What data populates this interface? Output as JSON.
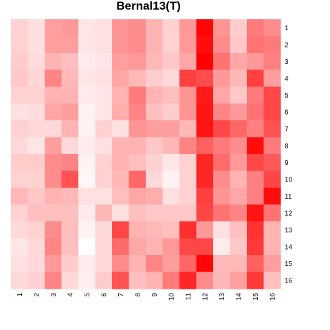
{
  "chart_data": {
    "type": "heatmap",
    "title": "Bernal13(T)",
    "xlabel": "",
    "ylabel": "",
    "x_categories": [
      "1",
      "2",
      "3",
      "4",
      "5",
      "6",
      "7",
      "8",
      "9",
      "10",
      "11",
      "12",
      "13",
      "14",
      "15",
      "16"
    ],
    "y_categories": [
      "1",
      "2",
      "3",
      "4",
      "5",
      "6",
      "7",
      "8",
      "9",
      "10",
      "11",
      "12",
      "13",
      "14",
      "15",
      "16"
    ],
    "color_low": "#ffffff",
    "color_high": "#ff0000",
    "value_range": [
      0,
      1
    ],
    "legend": "none",
    "grid": false,
    "values": [
      [
        0.18,
        0.12,
        0.38,
        0.4,
        0.1,
        0.12,
        0.42,
        0.45,
        0.3,
        0.18,
        0.4,
        0.98,
        0.42,
        0.2,
        0.52,
        0.45
      ],
      [
        0.18,
        0.12,
        0.38,
        0.38,
        0.1,
        0.12,
        0.42,
        0.45,
        0.3,
        0.18,
        0.4,
        0.95,
        0.45,
        0.22,
        0.55,
        0.52
      ],
      [
        0.2,
        0.14,
        0.3,
        0.25,
        0.08,
        0.1,
        0.38,
        0.4,
        0.28,
        0.22,
        0.35,
        1.0,
        0.55,
        0.35,
        0.4,
        0.5
      ],
      [
        0.22,
        0.16,
        0.48,
        0.28,
        0.1,
        0.12,
        0.35,
        0.28,
        0.2,
        0.15,
        0.75,
        0.7,
        0.4,
        0.28,
        0.75,
        0.38
      ],
      [
        0.18,
        0.18,
        0.3,
        0.3,
        0.08,
        0.1,
        0.3,
        0.52,
        0.3,
        0.25,
        0.42,
        0.9,
        0.35,
        0.22,
        0.52,
        0.72
      ],
      [
        0.12,
        0.14,
        0.35,
        0.38,
        0.05,
        0.1,
        0.32,
        0.48,
        0.25,
        0.2,
        0.42,
        0.92,
        0.48,
        0.4,
        0.55,
        0.72
      ],
      [
        0.18,
        0.15,
        0.15,
        0.3,
        0.05,
        0.18,
        0.12,
        0.42,
        0.38,
        0.38,
        0.28,
        0.92,
        0.72,
        0.6,
        0.5,
        0.68
      ],
      [
        0.15,
        0.1,
        0.38,
        0.15,
        0.08,
        0.12,
        0.3,
        0.3,
        0.22,
        0.28,
        0.48,
        0.62,
        0.52,
        0.45,
        0.95,
        0.52
      ],
      [
        0.2,
        0.2,
        0.45,
        0.48,
        0.05,
        0.18,
        0.3,
        0.25,
        0.18,
        0.1,
        0.18,
        0.85,
        0.58,
        0.4,
        0.72,
        0.65
      ],
      [
        0.18,
        0.18,
        0.45,
        0.68,
        0.03,
        0.18,
        0.28,
        0.6,
        0.15,
        0.05,
        0.18,
        0.85,
        0.45,
        0.3,
        0.5,
        0.72
      ],
      [
        0.28,
        0.22,
        0.3,
        0.28,
        0.12,
        0.12,
        0.25,
        0.35,
        0.32,
        0.12,
        0.18,
        0.75,
        0.42,
        0.35,
        0.5,
        0.95
      ],
      [
        0.18,
        0.25,
        0.25,
        0.25,
        0.08,
        0.28,
        0.12,
        0.25,
        0.22,
        0.22,
        0.22,
        0.72,
        0.55,
        0.48,
        0.92,
        0.55
      ],
      [
        0.15,
        0.18,
        0.45,
        0.25,
        0.05,
        0.15,
        0.72,
        0.3,
        0.28,
        0.25,
        0.82,
        0.4,
        0.12,
        0.25,
        0.8,
        0.3
      ],
      [
        0.1,
        0.15,
        0.48,
        0.25,
        0.0,
        0.15,
        0.58,
        0.35,
        0.3,
        0.4,
        0.72,
        0.72,
        0.08,
        0.22,
        0.78,
        0.3
      ],
      [
        0.12,
        0.15,
        0.4,
        0.2,
        0.08,
        0.15,
        0.45,
        0.3,
        0.48,
        0.38,
        0.6,
        0.98,
        0.28,
        0.28,
        0.62,
        0.38
      ],
      [
        0.15,
        0.18,
        0.48,
        0.15,
        0.06,
        0.2,
        0.68,
        0.25,
        0.3,
        0.52,
        0.85,
        0.45,
        0.28,
        0.38,
        0.78,
        0.25
      ]
    ]
  }
}
